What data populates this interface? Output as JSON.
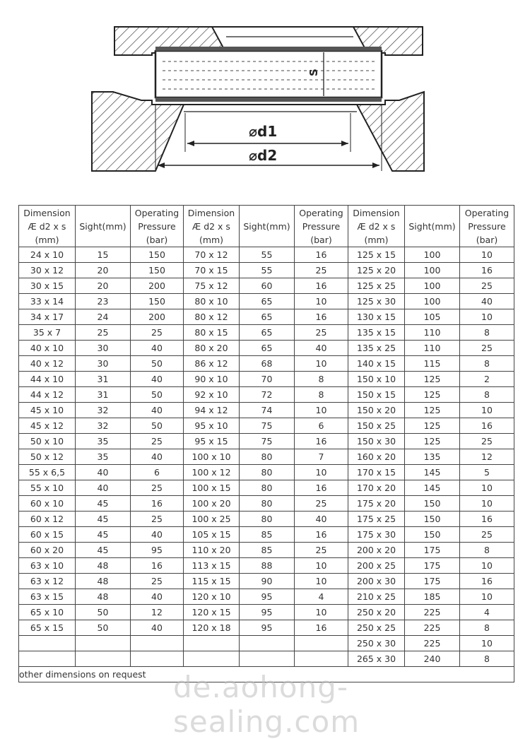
{
  "diagram": {
    "label_d1": "⌀d1",
    "label_d2": "⌀d2",
    "label_s": "S"
  },
  "table": {
    "headers": [
      "Dimension Æ d2 x s (mm)",
      "Sight(mm)",
      "Operating Pressure (bar)",
      "Dimension Æ d2 x s (mm)",
      "Sight(mm)",
      "Operating Pressure (bar)",
      "Dimension Æ d2 x s (mm)",
      "Sight(mm)",
      "Operating Pressure (bar)"
    ],
    "rows": [
      [
        "24 x 10",
        "15",
        "150",
        "70 x 12",
        "55",
        "16",
        "125 x 15",
        "100",
        "10"
      ],
      [
        "30 x 12",
        "20",
        "150",
        "70 x 15",
        "55",
        "25",
        "125 x 20",
        "100",
        "16"
      ],
      [
        "30 x 15",
        "20",
        "200",
        "75 x 12",
        "60",
        "16",
        "125 x 25",
        "100",
        "25"
      ],
      [
        "33 x 14",
        "23",
        "150",
        "80 x 10",
        "65",
        "10",
        "125 x 30",
        "100",
        "40"
      ],
      [
        "34 x 17",
        "24",
        "200",
        "80 x 12",
        "65",
        "16",
        "130 x 15",
        "105",
        "10"
      ],
      [
        "35 x 7",
        "25",
        "25",
        "80 x 15",
        "65",
        "25",
        "135 x 15",
        "110",
        "8"
      ],
      [
        "40 x 10",
        "30",
        "40",
        "80 x 20",
        "65",
        "40",
        "135 x 25",
        "110",
        "25"
      ],
      [
        "40 x 12",
        "30",
        "50",
        "86 x 12",
        "68",
        "10",
        "140 x 15",
        "115",
        "8"
      ],
      [
        "44 x 10",
        "31",
        "40",
        "90 x 10",
        "70",
        "8",
        "150 x 10",
        "125",
        "2"
      ],
      [
        "44 x 12",
        "31",
        "50",
        "92 x 10",
        "72",
        "8",
        "150 x 15",
        "125",
        "8"
      ],
      [
        "45 x 10",
        "32",
        "40",
        "94 x 12",
        "74",
        "10",
        "150 x 20",
        "125",
        "10"
      ],
      [
        "45 x 12",
        "32",
        "50",
        "95 x 10",
        "75",
        "6",
        "150 x 25",
        "125",
        "16"
      ],
      [
        "50 x 10",
        "35",
        "25",
        "95 x 15",
        "75",
        "16",
        "150 x 30",
        "125",
        "25"
      ],
      [
        "50 x 12",
        "35",
        "40",
        "100 x 10",
        "80",
        "7",
        "160 x 20",
        "135",
        "12"
      ],
      [
        "55 x 6,5",
        "40",
        "6",
        "100 x 12",
        "80",
        "10",
        "170 x 15",
        "145",
        "5"
      ],
      [
        "55 x 10",
        "40",
        "25",
        "100 x 15",
        "80",
        "16",
        "170 x 20",
        "145",
        "10"
      ],
      [
        "60 x 10",
        "45",
        "16",
        "100 x 20",
        "80",
        "25",
        "175 x 20",
        "150",
        "10"
      ],
      [
        "60 x 12",
        "45",
        "25",
        "100 x 25",
        "80",
        "40",
        "175 x 25",
        "150",
        "16"
      ],
      [
        "60 x 15",
        "45",
        "40",
        "105 x 15",
        "85",
        "16",
        "175 x 30",
        "150",
        "25"
      ],
      [
        "60 x 20",
        "45",
        "95",
        "110 x 20",
        "85",
        "25",
        "200 x 20",
        "175",
        "8"
      ],
      [
        "63 x 10",
        "48",
        "16",
        "113 x 15",
        "88",
        "10",
        "200 x 25",
        "175",
        "10"
      ],
      [
        "63 x 12",
        "48",
        "25",
        "115 x 15",
        "90",
        "10",
        "200 x 30",
        "175",
        "16"
      ],
      [
        "63 x 15",
        "48",
        "40",
        "120 x 10",
        "95",
        "4",
        "210 x 25",
        "185",
        "10"
      ],
      [
        "65 x 10",
        "50",
        "12",
        "120 x 15",
        "95",
        "10",
        "250 x 20",
        "225",
        "4"
      ],
      [
        "65 x 15",
        "50",
        "40",
        "120 x 18",
        "95",
        "16",
        "250 x 25",
        "225",
        "8"
      ],
      [
        "",
        "",
        "",
        "",
        "",
        "",
        "250 x 30",
        "225",
        "10"
      ],
      [
        "",
        "",
        "",
        "",
        "",
        "",
        "265 x 30",
        "240",
        "8"
      ]
    ],
    "footer": "other dimensions on request"
  },
  "watermark": "de.aohong-sealing.com"
}
